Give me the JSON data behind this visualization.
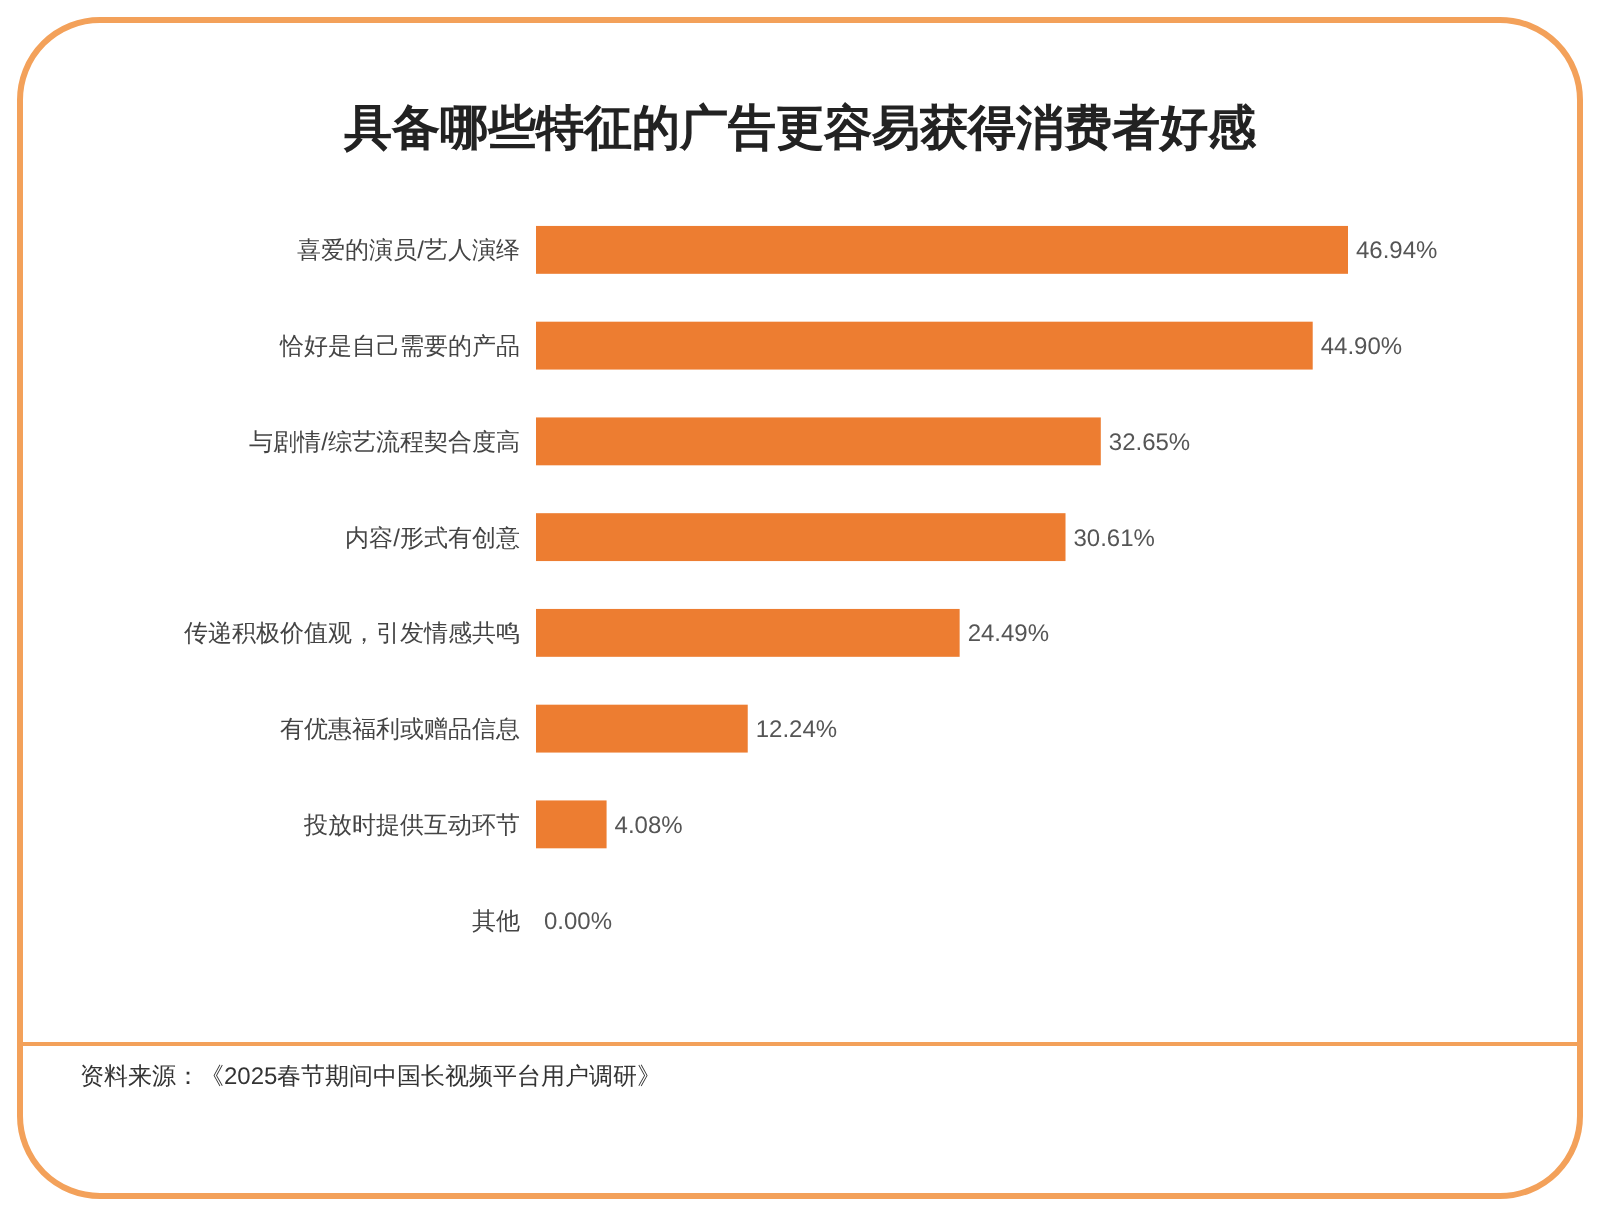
{
  "chart_data": {
    "type": "bar",
    "orientation": "horizontal",
    "title": "具备哪些特征的广告更容易获得消费者好感",
    "categories": [
      "喜爱的演员/艺人演绎",
      "恰好是自己需要的产品",
      "与剧情/综艺流程契合度高",
      "内容/形式有创意",
      "传递积极价值观，引发情感共鸣",
      "有优惠福利或赠品信息",
      "投放时提供互动环节",
      "其他"
    ],
    "values": [
      46.94,
      44.9,
      32.65,
      30.61,
      24.49,
      12.24,
      4.08,
      0.0
    ],
    "value_labels": [
      "46.94%",
      "44.90%",
      "32.65%",
      "30.61%",
      "24.49%",
      "12.24%",
      "4.08%",
      "0.00%"
    ],
    "color": "#ed7d31",
    "annotations": [
      "资料来源：《2025春节期间中国长视频平台用户调研》"
    ]
  }
}
